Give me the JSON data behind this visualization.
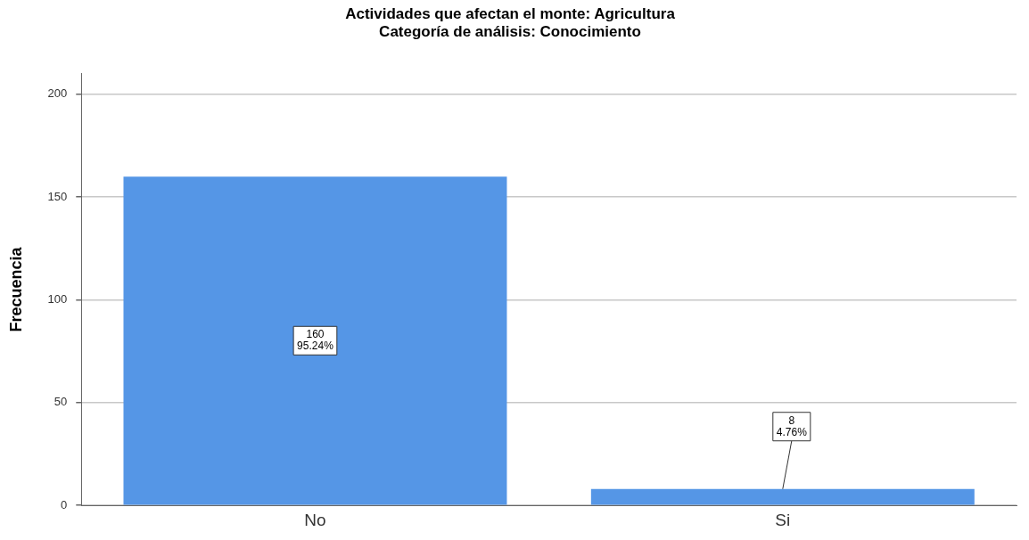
{
  "chart_data": {
    "type": "bar",
    "title": "Actividades que afectan el monte: Agricultura",
    "subtitle": "Categoría de análisis: Conocimiento",
    "ylabel": "Frecuencia",
    "categories": [
      "No",
      "Si"
    ],
    "values": [
      160,
      8
    ],
    "color": "#5596e6",
    "value_labels": [
      "160\n95.24%",
      "8\n4.76%"
    ],
    "ylim": [
      0,
      210
    ],
    "yticks": [
      0,
      50,
      100,
      150,
      200
    ],
    "grid": "y",
    "legend": false
  }
}
